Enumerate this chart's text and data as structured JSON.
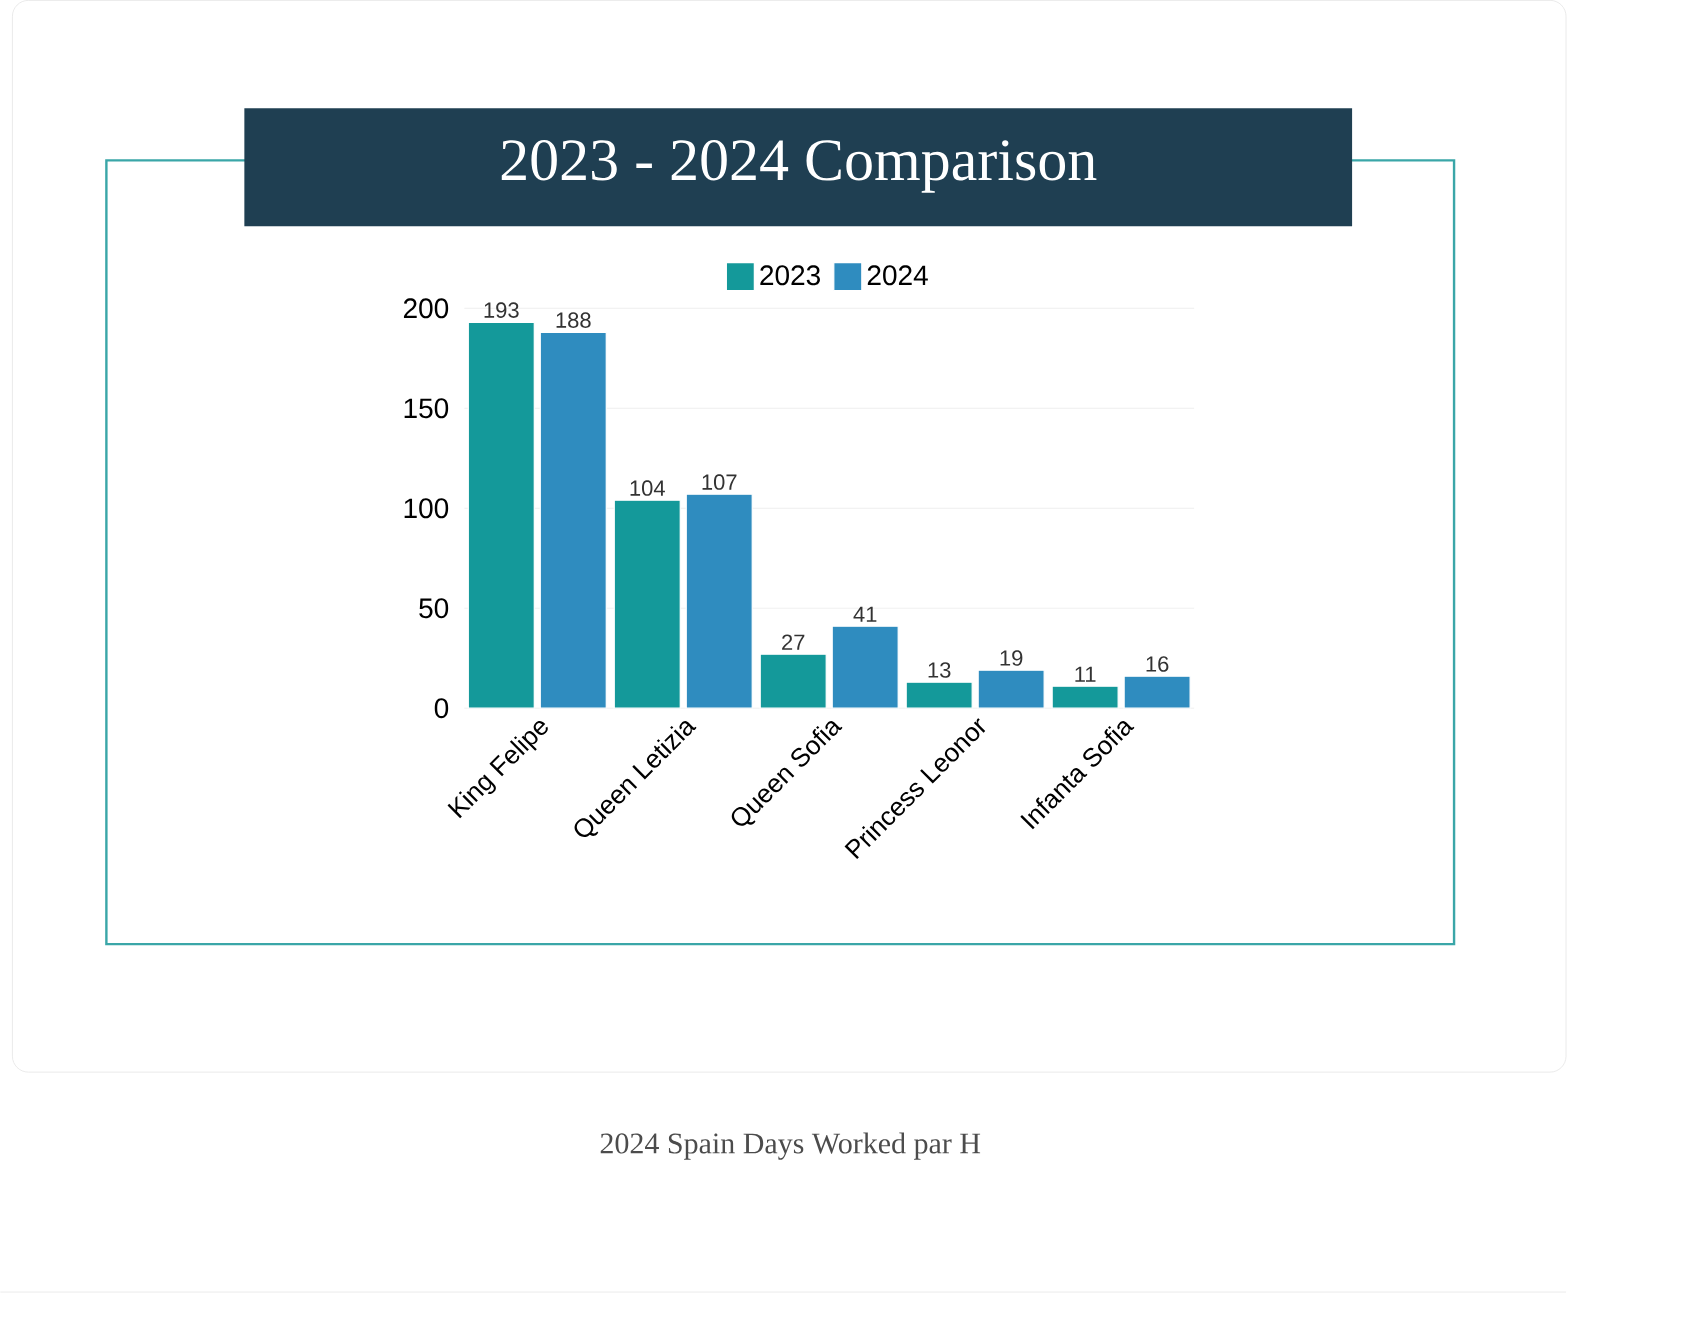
{
  "chart_data": {
    "type": "bar",
    "title": "2023 - 2024 Comparison",
    "categories": [
      "King Felipe",
      "Queen Letizia",
      "Queen Sofia",
      "Princess Leonor",
      "Infanta Sofia"
    ],
    "series": [
      {
        "name": "2023",
        "color": "#14999a",
        "values": [
          193,
          104,
          27,
          13,
          11
        ]
      },
      {
        "name": "2024",
        "color": "#2f8cbf",
        "values": [
          188,
          107,
          41,
          19,
          16
        ]
      }
    ],
    "ylim": [
      0,
      200
    ],
    "yticks": [
      0,
      50,
      100,
      150,
      200
    ],
    "grid": "y",
    "legend": "top",
    "data_labels": true,
    "annotations": [
      "2024 Spain Days Worked par H"
    ]
  }
}
